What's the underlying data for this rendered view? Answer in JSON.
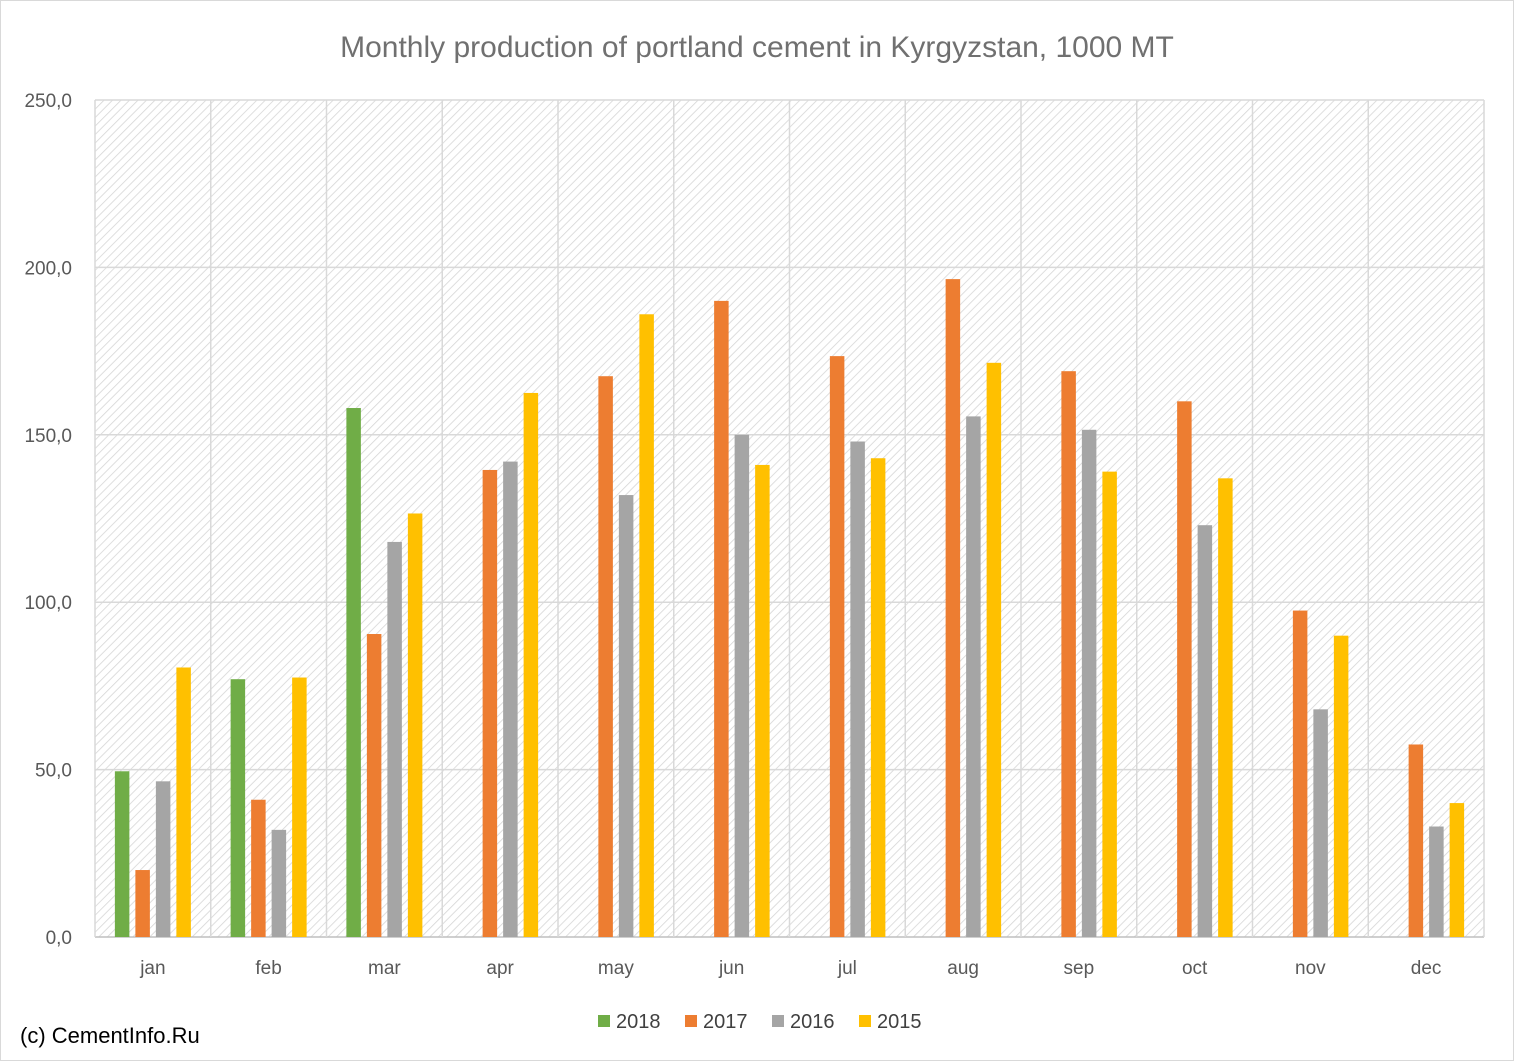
{
  "chart_data": {
    "type": "bar",
    "title": "Monthly production of portland cement in Kyrgyzstan, 1000 MT",
    "xlabel": "",
    "ylabel": "",
    "categories": [
      "jan",
      "feb",
      "mar",
      "apr",
      "may",
      "jun",
      "jul",
      "aug",
      "sep",
      "oct",
      "nov",
      "dec"
    ],
    "ylim": [
      0,
      250
    ],
    "yticks": [
      "0,0",
      "50,0",
      "100,0",
      "150,0",
      "200,0",
      "250,0"
    ],
    "ytick_values": [
      0,
      50,
      100,
      150,
      200,
      250
    ],
    "grid": true,
    "legend_position": "bottom",
    "series": [
      {
        "name": "2018",
        "color": "#70ad47",
        "values": [
          49.5,
          77,
          158,
          null,
          null,
          null,
          null,
          null,
          null,
          null,
          null,
          null
        ]
      },
      {
        "name": "2017",
        "color": "#ed7d31",
        "values": [
          20,
          41,
          90.5,
          139.5,
          167.5,
          190,
          173.5,
          196.5,
          169,
          160,
          97.5,
          57.5
        ]
      },
      {
        "name": "2016",
        "color": "#a5a5a5",
        "values": [
          46.5,
          32,
          118,
          142,
          132,
          150,
          148,
          155.5,
          151.5,
          123,
          68,
          33
        ]
      },
      {
        "name": "2015",
        "color": "#ffc000",
        "values": [
          80.5,
          77.5,
          126.5,
          162.5,
          186,
          141,
          143,
          171.5,
          139,
          137,
          90,
          40
        ]
      }
    ]
  },
  "credit": "(c) CementInfo.Ru"
}
